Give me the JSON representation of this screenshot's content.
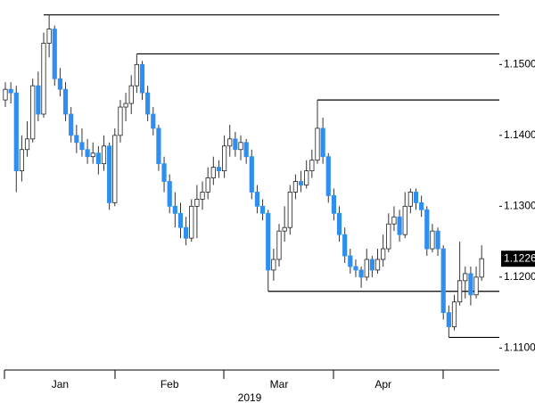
{
  "chart_data": {
    "type": "candlestick",
    "up_color": "#ffffff",
    "down_color": "#2f8ff0",
    "ylim": [
      1.1069,
      1.1591
    ],
    "yticks": [
      {
        "value": 1.11,
        "label": "1.1100"
      },
      {
        "value": 1.12,
        "label": "1.1200"
      },
      {
        "value": 1.13,
        "label": "1.1300"
      },
      {
        "value": 1.14,
        "label": "1.1400"
      },
      {
        "value": 1.15,
        "label": "1.1500"
      }
    ],
    "xticks": [
      {
        "value": 10,
        "label": "Jan"
      },
      {
        "value": 30,
        "label": "Feb"
      },
      {
        "value": 50,
        "label": "Mar"
      },
      {
        "value": 69,
        "label": "Apr"
      }
    ],
    "year": "2019",
    "last": {
      "value": 1.1226,
      "label": "1.1226"
    },
    "levels": [
      {
        "value": 1.157,
        "start": 7
      },
      {
        "value": 1.1515,
        "start": 24
      },
      {
        "value": 1.145,
        "start": 57
      },
      {
        "value": 1.118,
        "start": 48
      },
      {
        "value": 1.1115,
        "start": 81
      }
    ],
    "ohlc": [
      [
        1.145,
        1.1475,
        1.144,
        1.1465
      ],
      [
        1.1465,
        1.1475,
        1.1445,
        1.146
      ],
      [
        1.146,
        1.147,
        1.132,
        1.135
      ],
      [
        1.135,
        1.14,
        1.1335,
        1.138
      ],
      [
        1.138,
        1.142,
        1.137,
        1.1395
      ],
      [
        1.1395,
        1.148,
        1.139,
        1.147
      ],
      [
        1.147,
        1.149,
        1.142,
        1.143
      ],
      [
        1.143,
        1.1545,
        1.1425,
        1.153
      ],
      [
        1.153,
        1.157,
        1.151,
        1.155
      ],
      [
        1.155,
        1.1555,
        1.147,
        1.148
      ],
      [
        1.148,
        1.1495,
        1.1455,
        1.1465
      ],
      [
        1.1465,
        1.1475,
        1.142,
        1.143
      ],
      [
        1.143,
        1.144,
        1.139,
        1.14
      ],
      [
        1.14,
        1.1415,
        1.1375,
        1.139
      ],
      [
        1.139,
        1.141,
        1.137,
        1.138
      ],
      [
        1.138,
        1.1395,
        1.136,
        1.137
      ],
      [
        1.137,
        1.139,
        1.136,
        1.1375
      ],
      [
        1.1375,
        1.1385,
        1.1345,
        1.136
      ],
      [
        1.136,
        1.14,
        1.135,
        1.1385
      ],
      [
        1.1385,
        1.139,
        1.1295,
        1.1305
      ],
      [
        1.1305,
        1.141,
        1.13,
        1.14
      ],
      [
        1.14,
        1.145,
        1.139,
        1.144
      ],
      [
        1.144,
        1.146,
        1.142,
        1.1445
      ],
      [
        1.1445,
        1.1485,
        1.143,
        1.147
      ],
      [
        1.147,
        1.1515,
        1.146,
        1.15
      ],
      [
        1.15,
        1.1505,
        1.145,
        1.146
      ],
      [
        1.146,
        1.147,
        1.142,
        1.143
      ],
      [
        1.143,
        1.144,
        1.14,
        1.141
      ],
      [
        1.141,
        1.1415,
        1.135,
        1.136
      ],
      [
        1.136,
        1.137,
        1.132,
        1.1335
      ],
      [
        1.1335,
        1.1345,
        1.129,
        1.13
      ],
      [
        1.13,
        1.132,
        1.127,
        1.129
      ],
      [
        1.129,
        1.1305,
        1.1255,
        1.127
      ],
      [
        1.127,
        1.1285,
        1.1245,
        1.1255
      ],
      [
        1.1255,
        1.131,
        1.125,
        1.13
      ],
      [
        1.13,
        1.133,
        1.1255,
        1.131
      ],
      [
        1.131,
        1.1335,
        1.1295,
        1.132
      ],
      [
        1.132,
        1.1355,
        1.131,
        1.134
      ],
      [
        1.134,
        1.137,
        1.133,
        1.1355
      ],
      [
        1.1355,
        1.1365,
        1.134,
        1.135
      ],
      [
        1.135,
        1.14,
        1.134,
        1.1385
      ],
      [
        1.1385,
        1.1415,
        1.137,
        1.1395
      ],
      [
        1.1395,
        1.1405,
        1.137,
        1.138
      ],
      [
        1.138,
        1.14,
        1.1365,
        1.139
      ],
      [
        1.139,
        1.1395,
        1.136,
        1.137
      ],
      [
        1.137,
        1.138,
        1.131,
        1.132
      ],
      [
        1.132,
        1.133,
        1.129,
        1.13
      ],
      [
        1.13,
        1.131,
        1.128,
        1.129
      ],
      [
        1.129,
        1.1295,
        1.118,
        1.121
      ],
      [
        1.121,
        1.124,
        1.1195,
        1.1225
      ],
      [
        1.1225,
        1.1275,
        1.1215,
        1.1265
      ],
      [
        1.1265,
        1.13,
        1.125,
        1.127
      ],
      [
        1.127,
        1.133,
        1.126,
        1.132
      ],
      [
        1.132,
        1.1345,
        1.131,
        1.1335
      ],
      [
        1.1335,
        1.135,
        1.132,
        1.133
      ],
      [
        1.133,
        1.1365,
        1.1325,
        1.135
      ],
      [
        1.135,
        1.138,
        1.134,
        1.1365
      ],
      [
        1.1365,
        1.145,
        1.136,
        1.141
      ],
      [
        1.141,
        1.1425,
        1.136,
        1.137
      ],
      [
        1.137,
        1.1375,
        1.1305,
        1.1315
      ],
      [
        1.1315,
        1.1325,
        1.128,
        1.129
      ],
      [
        1.129,
        1.13,
        1.125,
        1.126
      ],
      [
        1.126,
        1.127,
        1.122,
        1.123
      ],
      [
        1.123,
        1.124,
        1.1205,
        1.1215
      ],
      [
        1.1215,
        1.1225,
        1.12,
        1.121
      ],
      [
        1.121,
        1.1215,
        1.1185,
        1.12
      ],
      [
        1.12,
        1.124,
        1.1195,
        1.1225
      ],
      [
        1.1225,
        1.123,
        1.12,
        1.121
      ],
      [
        1.121,
        1.124,
        1.1205,
        1.1225
      ],
      [
        1.1225,
        1.126,
        1.1215,
        1.124
      ],
      [
        1.124,
        1.129,
        1.1235,
        1.1275
      ],
      [
        1.1275,
        1.13,
        1.1265,
        1.1285
      ],
      [
        1.1285,
        1.1295,
        1.125,
        1.126
      ],
      [
        1.126,
        1.132,
        1.1255,
        1.13
      ],
      [
        1.13,
        1.1325,
        1.129,
        1.132
      ],
      [
        1.132,
        1.1325,
        1.1295,
        1.1305
      ],
      [
        1.1305,
        1.1315,
        1.1285,
        1.1295
      ],
      [
        1.1295,
        1.13,
        1.123,
        1.124
      ],
      [
        1.124,
        1.1275,
        1.1235,
        1.1265
      ],
      [
        1.1265,
        1.127,
        1.123,
        1.124
      ],
      [
        1.124,
        1.1245,
        1.114,
        1.115
      ],
      [
        1.115,
        1.116,
        1.1115,
        1.113
      ],
      [
        1.113,
        1.1175,
        1.1125,
        1.1165
      ],
      [
        1.1165,
        1.125,
        1.116,
        1.1195
      ],
      [
        1.1195,
        1.1215,
        1.117,
        1.1205
      ],
      [
        1.1205,
        1.1215,
        1.116,
        1.1175
      ],
      [
        1.1175,
        1.1215,
        1.117,
        1.12
      ],
      [
        1.12,
        1.1245,
        1.1195,
        1.1226
      ]
    ]
  }
}
